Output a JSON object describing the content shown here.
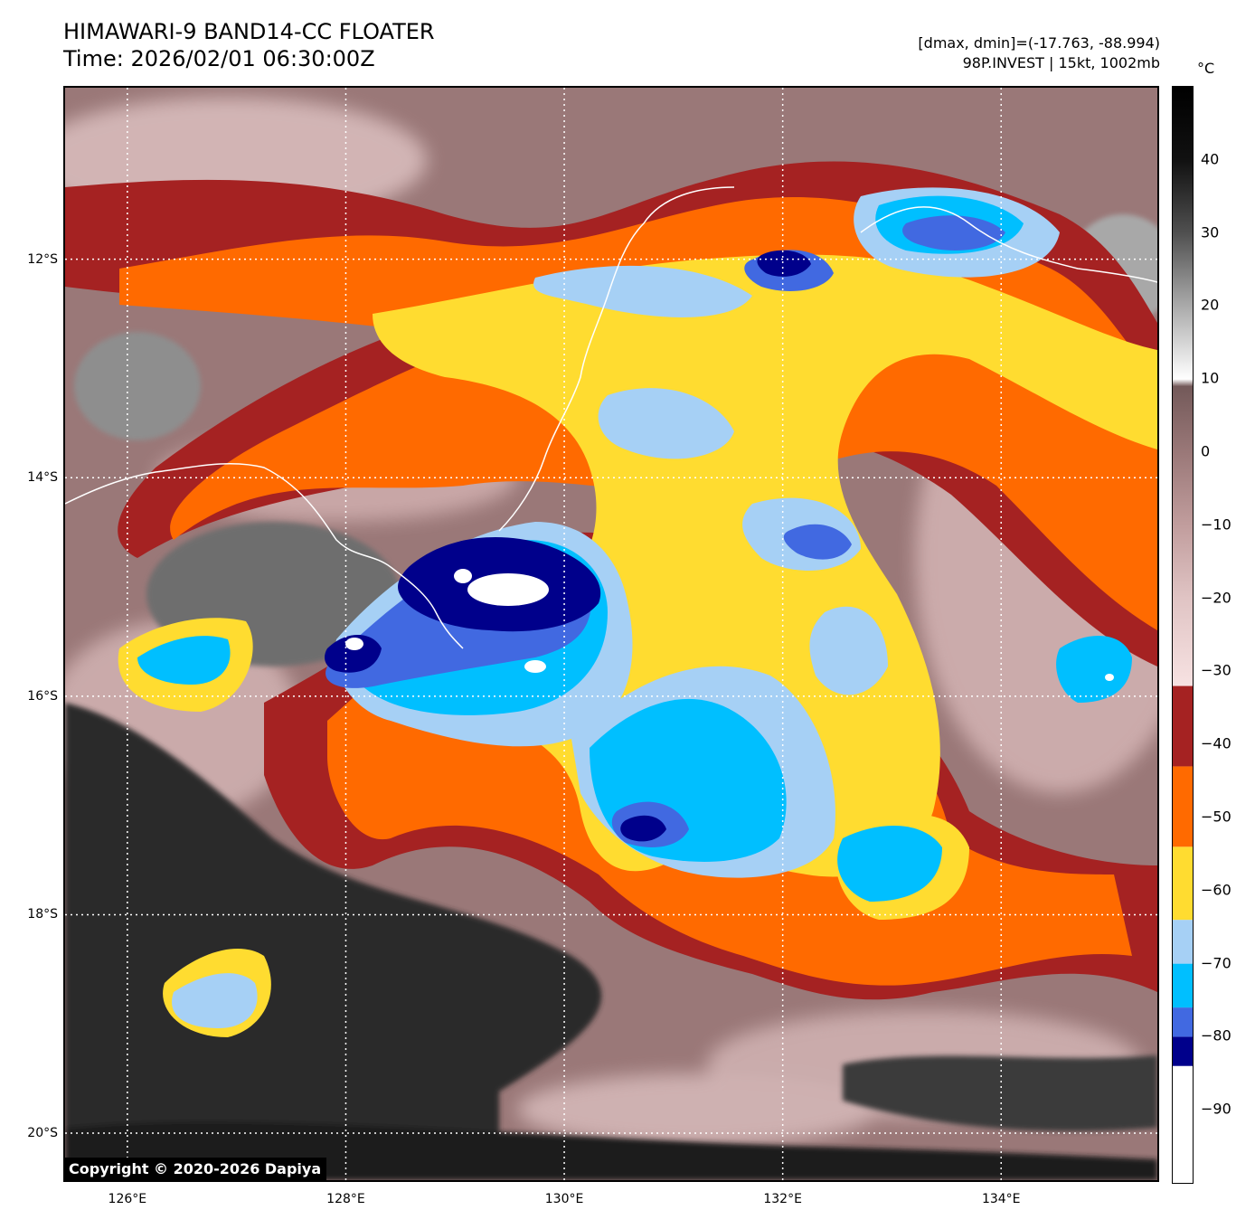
{
  "header": {
    "title": "HIMAWARI-9 BAND14-CC FLOATER",
    "time": "Time: 2026/02/01 06:30:00Z",
    "range": "[dmax, dmin]=(-17.763, -88.994)",
    "storm": "98P.INVEST | 15kt, 1002mb"
  },
  "map": {
    "lon_range": [
      125.43,
      135.43
    ],
    "lat_range": [
      -20.43,
      -10.43
    ],
    "lat_labels": [
      "12°S",
      "14°S",
      "16°S",
      "18°S",
      "20°S"
    ],
    "lon_labels": [
      "126°E",
      "128°E",
      "130°E",
      "132°E",
      "134°E"
    ],
    "lat_values": [
      -12,
      -14,
      -16,
      -18,
      -20
    ],
    "lon_values": [
      126,
      128,
      130,
      132,
      134
    ],
    "gridlines": "dotted white"
  },
  "colorbar": {
    "unit": "°C",
    "range": [
      -100,
      50
    ],
    "tick_labels": [
      "40",
      "30",
      "20",
      "10",
      "0",
      "−10",
      "−20",
      "−30",
      "−40",
      "−50",
      "−60",
      "−70",
      "−80",
      "−90"
    ],
    "tick_values": [
      40,
      30,
      20,
      10,
      0,
      -10,
      -20,
      -30,
      -40,
      -50,
      -60,
      -70,
      -80,
      -90
    ],
    "bands": [
      {
        "from": -100,
        "to": -84,
        "color": "#ffffff"
      },
      {
        "from": -84,
        "to": -80,
        "color": "#00008b"
      },
      {
        "from": -80,
        "to": -76,
        "color": "#4169e1"
      },
      {
        "from": -76,
        "to": -70,
        "color": "#00bfff"
      },
      {
        "from": -70,
        "to": -64,
        "color": "#a6d0f5"
      },
      {
        "from": -64,
        "to": -54,
        "color": "#ffdc30"
      },
      {
        "from": -54,
        "to": -43,
        "color": "#ff6a00"
      },
      {
        "from": -43,
        "to": -32,
        "color": "#a52222"
      }
    ],
    "gradient_stops": [
      {
        "t": -32,
        "color": "#f7e2e2"
      },
      {
        "t": -20,
        "color": "#e0c4c4"
      },
      {
        "t": -10,
        "color": "#c19d9d"
      },
      {
        "t": 0,
        "color": "#9a7878"
      },
      {
        "t": 9,
        "color": "#735959"
      },
      {
        "t": 10,
        "color": "#ffffff"
      },
      {
        "t": 20,
        "color": "#aaaaaa"
      },
      {
        "t": 30,
        "color": "#505050"
      },
      {
        "t": 40,
        "color": "#111111"
      },
      {
        "t": 50,
        "color": "#000000"
      }
    ]
  },
  "imagery_colors": {
    "dark_land": "#2a2a2a",
    "mauve_bg": "#9a7878",
    "light_pink": "#e8cccc",
    "grey_cloud": "#9a9a9a",
    "red_band": "#a52222",
    "orange_band": "#ff6a00",
    "yellow_band": "#ffdc30",
    "pale_blue": "#a6d0f5",
    "cyan": "#00bfff",
    "royal_blue": "#4169e1",
    "navy": "#00008b",
    "white_core": "#ffffff",
    "coastline": "#ffffff"
  },
  "footer": {
    "copyright": "Copyright © 2020-2026 Dapiya"
  }
}
